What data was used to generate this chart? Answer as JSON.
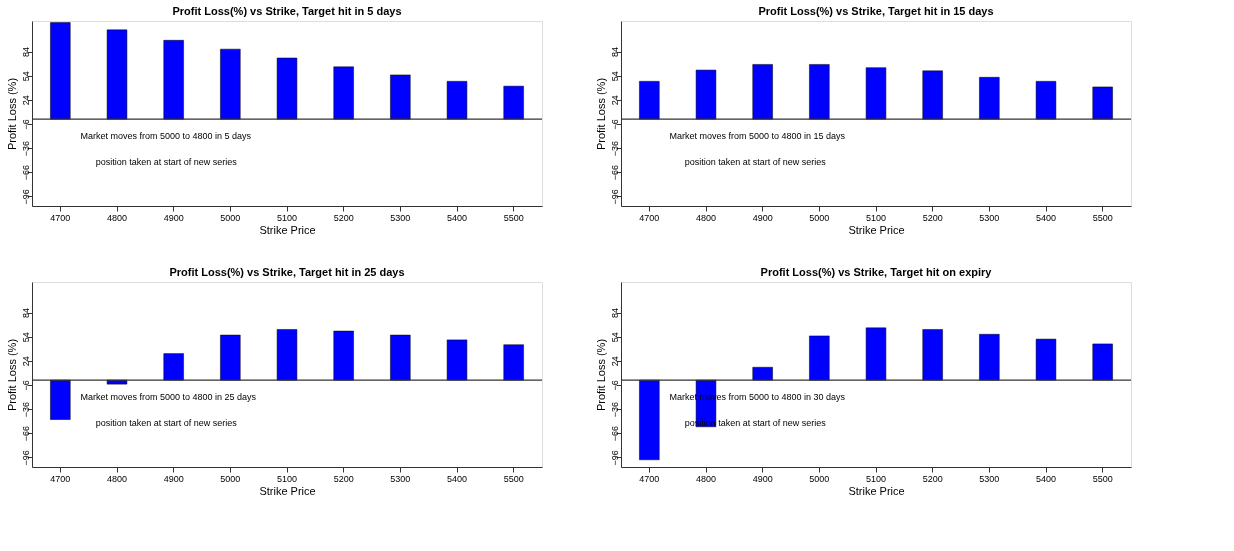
{
  "chart_data": [
    {
      "type": "bar",
      "title": "Profit Loss(%) vs Strike, Target hit in 5 days",
      "xlabel": "Strike Price",
      "ylabel": "Profit Loss (%)",
      "categories": [
        "4700",
        "4800",
        "4900",
        "5000",
        "5100",
        "5200",
        "5300",
        "5400",
        "5500"
      ],
      "series": [
        {
          "color": "#0000ff",
          "values": [
            120,
            111,
            98,
            87,
            76,
            65,
            55,
            47,
            41
          ]
        }
      ],
      "ylim": [
        -108,
        122
      ],
      "yticks": [
        84,
        54,
        24,
        -6,
        -36,
        -66,
        -96
      ],
      "grid": false,
      "ref_lines": [
        {
          "axis": "y",
          "value": 0
        }
      ],
      "annotations": [
        "Market moves from 5000 to 4800 in 5 days",
        "position taken at start of new series"
      ]
    },
    {
      "type": "bar",
      "title": "Profit Loss(%) vs Strike, Target hit in 15 days",
      "xlabel": "Strike Price",
      "ylabel": "Profit Loss (%)",
      "categories": [
        "4700",
        "4800",
        "4900",
        "5000",
        "5100",
        "5200",
        "5300",
        "5400",
        "5500"
      ],
      "series": [
        {
          "color": "#0000ff",
          "values": [
            47,
            61,
            68,
            68,
            64,
            60,
            52,
            47,
            40
          ]
        }
      ],
      "ylim": [
        -108,
        122
      ],
      "yticks": [
        84,
        54,
        24,
        -6,
        -36,
        -66,
        -96
      ],
      "grid": false,
      "ref_lines": [
        {
          "axis": "y",
          "value": 0
        }
      ],
      "annotations": [
        "Market moves from 5000 to 4800 in 15 days",
        "position taken at start of new series"
      ]
    },
    {
      "type": "bar",
      "title": "Profit Loss(%) vs Strike, Target hit in 25 days",
      "xlabel": "Strike Price",
      "ylabel": "Profit Loss (%)",
      "categories": [
        "4700",
        "4800",
        "4900",
        "5000",
        "5100",
        "5200",
        "5300",
        "5400",
        "5500"
      ],
      "series": [
        {
          "color": "#0000ff",
          "values": [
            -49,
            -5,
            33,
            56,
            63,
            61,
            56,
            50,
            44
          ]
        }
      ],
      "ylim": [
        -108,
        122
      ],
      "yticks": [
        84,
        54,
        24,
        -6,
        -36,
        -66,
        -96
      ],
      "grid": false,
      "ref_lines": [
        {
          "axis": "y",
          "value": 0
        }
      ],
      "annotations": [
        "Market moves from 5000 to 4800 in 25 days",
        "position taken at start of new series"
      ]
    },
    {
      "type": "bar",
      "title": "Profit Loss(%) vs Strike, Target hit on expiry",
      "xlabel": "Strike Price",
      "ylabel": "Profit Loss (%)",
      "categories": [
        "4700",
        "4800",
        "4900",
        "5000",
        "5100",
        "5200",
        "5300",
        "5400",
        "5500"
      ],
      "series": [
        {
          "color": "#0000ff",
          "values": [
            -99,
            -58,
            16,
            55,
            65,
            63,
            57,
            51,
            45
          ]
        }
      ],
      "ylim": [
        -108,
        122
      ],
      "yticks": [
        84,
        54,
        24,
        -6,
        -36,
        -66,
        -96
      ],
      "grid": false,
      "ref_lines": [
        {
          "axis": "y",
          "value": 0
        }
      ],
      "annotations": [
        "Market moves from 5000 to 4800 in 30 days",
        "position taken at start of new series"
      ]
    }
  ]
}
